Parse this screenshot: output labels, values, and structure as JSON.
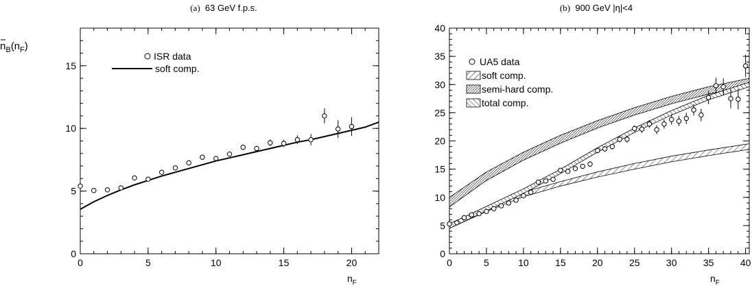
{
  "chart_data": [
    {
      "id": "a",
      "type": "scatter",
      "title_prefix": "(a)",
      "title": "63 GeV f.p.s.",
      "xlabel": "n",
      "xlabel_sub": "F",
      "ylabel_main": "n",
      "ylabel_sub": "B",
      "ylabel_arg": "(n",
      "ylabel_arg_sub": "F",
      "ylabel_close": ")",
      "xlim": [
        0,
        22
      ],
      "ylim": [
        0,
        18
      ],
      "xticks": [
        0,
        5,
        10,
        15,
        20
      ],
      "yticks": [
        0,
        5,
        10,
        15
      ],
      "grid": false,
      "legend_position": "top-left",
      "legend": [
        {
          "label": "ISR data",
          "kind": "marker"
        },
        {
          "label": "soft comp.",
          "kind": "line"
        }
      ],
      "points": {
        "x": [
          0,
          1,
          2,
          3,
          4,
          5,
          6,
          7,
          8,
          9,
          10,
          11,
          12,
          13,
          14,
          15,
          16,
          17,
          18,
          19,
          20
        ],
        "y": [
          5.4,
          5.05,
          5.1,
          5.25,
          6.05,
          5.95,
          6.5,
          6.85,
          7.25,
          7.7,
          7.6,
          7.95,
          8.5,
          8.4,
          8.85,
          8.8,
          9.1,
          9.1,
          11.0,
          9.95,
          10.15
        ],
        "err": [
          0.15,
          0.1,
          0.1,
          0.1,
          0.12,
          0.12,
          0.12,
          0.12,
          0.15,
          0.15,
          0.15,
          0.2,
          0.2,
          0.2,
          0.25,
          0.3,
          0.35,
          0.45,
          0.6,
          0.7,
          0.75
        ]
      },
      "curve": {
        "name": "soft comp.",
        "x": [
          0,
          1,
          2,
          3,
          4,
          5,
          6,
          7,
          8,
          9,
          10,
          11,
          12,
          13,
          14,
          15,
          16,
          17,
          18,
          19,
          20,
          21,
          22
        ],
        "y": [
          3.55,
          4.15,
          4.65,
          5.1,
          5.5,
          5.85,
          6.2,
          6.5,
          6.8,
          7.1,
          7.4,
          7.65,
          7.9,
          8.15,
          8.4,
          8.65,
          8.9,
          9.1,
          9.35,
          9.6,
          9.85,
          10.1,
          10.5
        ]
      }
    },
    {
      "id": "b",
      "type": "scatter",
      "title_prefix": "(b)",
      "title": "900 GeV |η|<4",
      "xlabel": "n",
      "xlabel_sub": "F",
      "xlim": [
        0,
        40.5
      ],
      "ylim": [
        0,
        40
      ],
      "xticks": [
        0,
        5,
        10,
        15,
        20,
        25,
        30,
        35,
        40
      ],
      "yticks": [
        0,
        5,
        10,
        15,
        20,
        25,
        30,
        35,
        40
      ],
      "grid": false,
      "legend_position": "top-left",
      "legend": [
        {
          "label": "UA5 data",
          "kind": "marker"
        },
        {
          "label": "soft comp.",
          "kind": "hatch-fwd"
        },
        {
          "label": "semi-hard comp.",
          "kind": "hatch-dense"
        },
        {
          "label": "total comp.",
          "kind": "hatch-back"
        }
      ],
      "points": {
        "x": [
          0,
          1,
          2,
          3,
          4,
          5,
          6,
          7,
          8,
          9,
          10,
          11,
          12,
          13,
          14,
          15,
          16,
          17,
          18,
          19,
          20,
          21,
          22,
          23,
          24,
          25,
          26,
          27,
          28,
          29,
          30,
          31,
          32,
          33,
          34,
          35,
          36,
          37,
          38,
          39,
          40
        ],
        "y": [
          5.3,
          5.5,
          6.4,
          6.9,
          7.1,
          7.5,
          8.0,
          8.5,
          9.0,
          9.5,
          10.3,
          10.9,
          12.7,
          12.9,
          13.2,
          14.8,
          14.6,
          15.1,
          15.5,
          15.9,
          18.3,
          18.6,
          19.0,
          20.3,
          20.3,
          22.2,
          22.1,
          23.0,
          22.0,
          23.0,
          23.8,
          23.5,
          24.0,
          25.5,
          24.6,
          27.7,
          29.8,
          29.6,
          27.5,
          27.4,
          33.3
        ],
        "err": [
          0.2,
          0.2,
          0.2,
          0.2,
          0.2,
          0.2,
          0.2,
          0.2,
          0.2,
          0.2,
          0.3,
          0.3,
          0.3,
          0.3,
          0.3,
          0.4,
          0.4,
          0.4,
          0.4,
          0.5,
          0.5,
          0.5,
          0.5,
          0.6,
          0.6,
          0.6,
          0.7,
          0.7,
          0.8,
          0.8,
          0.9,
          0.9,
          1.0,
          1.0,
          1.1,
          1.2,
          1.4,
          1.5,
          1.7,
          1.8,
          2.0
        ]
      },
      "bands": [
        {
          "name": "soft comp.",
          "hatch": "fwd",
          "x": [
            0,
            5,
            10,
            15,
            20,
            25,
            30,
            35,
            40.5
          ],
          "y_low": [
            4.5,
            7.5,
            10.1,
            12.0,
            13.6,
            15.0,
            16.3,
            17.4,
            18.5
          ],
          "y_high": [
            5.3,
            8.3,
            10.9,
            12.8,
            14.5,
            16.0,
            17.3,
            18.4,
            19.5
          ]
        },
        {
          "name": "semi-hard comp.",
          "hatch": "dense",
          "x": [
            0,
            5,
            10,
            15,
            20,
            25,
            30,
            35,
            40.5
          ],
          "y_low": [
            8.3,
            13.0,
            16.6,
            19.6,
            22.3,
            24.6,
            26.6,
            28.3,
            29.8
          ],
          "y_high": [
            10.0,
            14.5,
            18.0,
            21.0,
            23.6,
            25.9,
            27.9,
            29.6,
            31.1
          ]
        },
        {
          "name": "total comp.",
          "hatch": "back",
          "x": [
            0,
            5,
            10,
            15,
            20,
            25,
            30,
            35,
            40.5
          ],
          "y_low": [
            4.5,
            7.6,
            10.7,
            14.2,
            18.0,
            21.5,
            24.6,
            27.3,
            29.6
          ],
          "y_high": [
            5.3,
            8.4,
            11.5,
            15.0,
            18.8,
            22.3,
            25.4,
            28.1,
            30.4
          ]
        }
      ]
    }
  ]
}
